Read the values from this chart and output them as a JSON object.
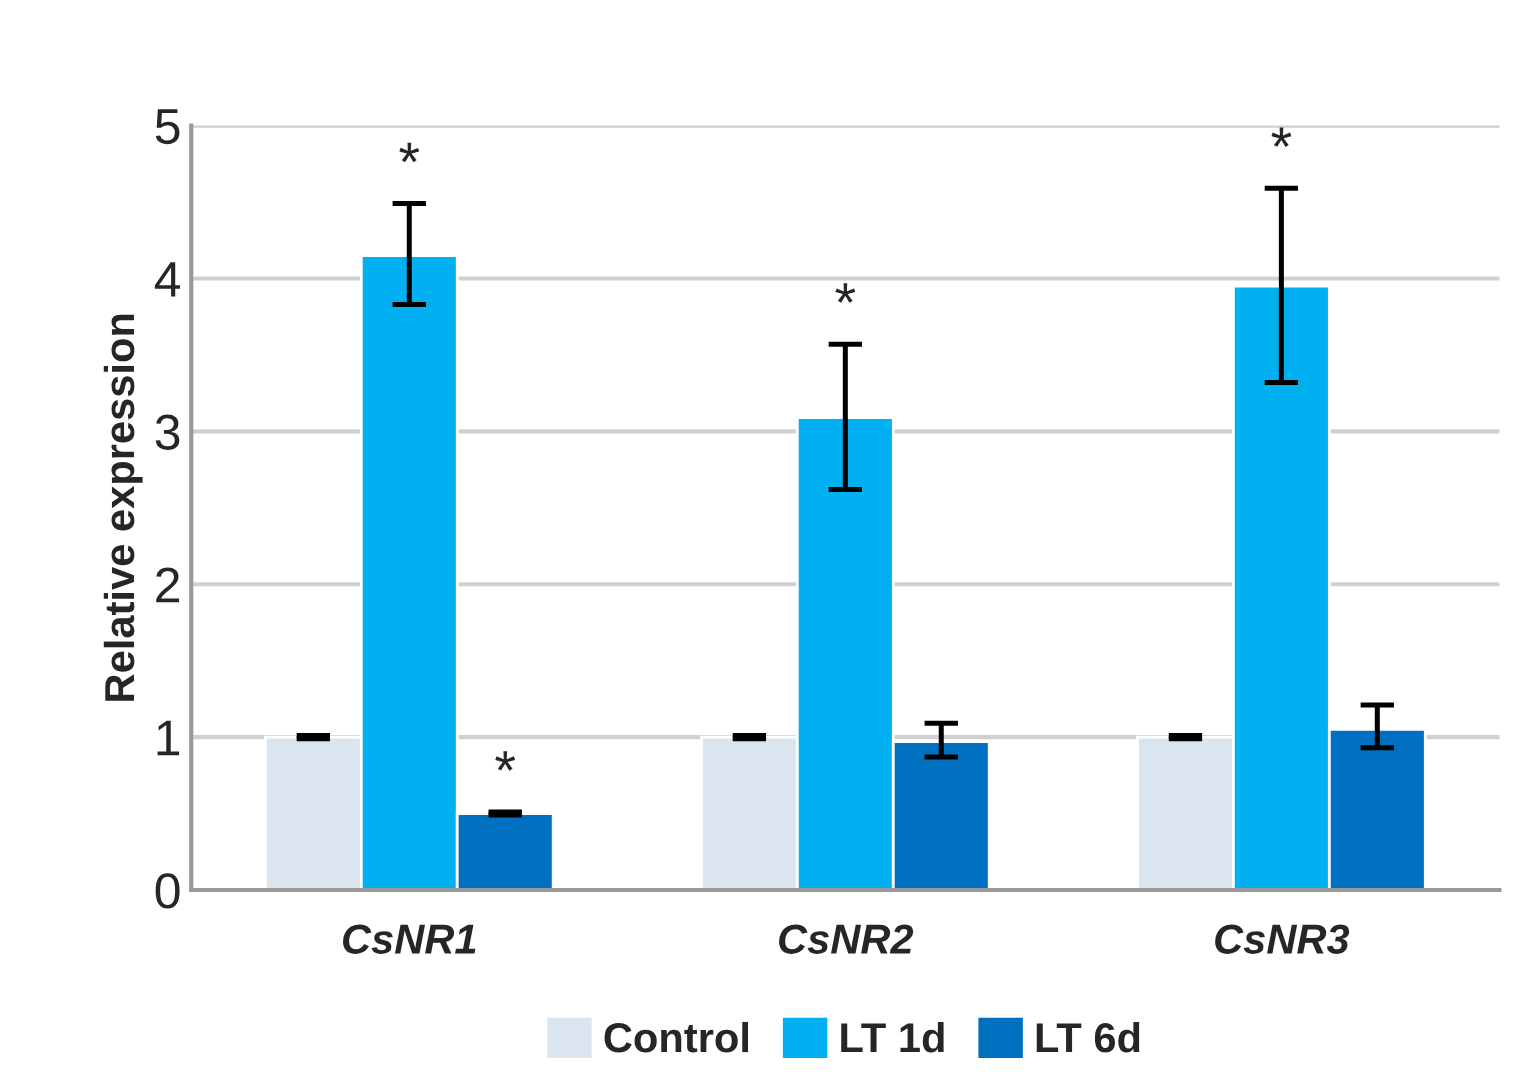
{
  "chart_data": {
    "type": "bar",
    "ylabel": "Relative expression",
    "categories": [
      "CsNR1",
      "CsNR2",
      "CsNR3"
    ],
    "series": [
      {
        "name": "Control",
        "color": "#dae5f0",
        "values": [
          1,
          1,
          1
        ],
        "errors": [
          0.01,
          0.01,
          0.01
        ]
      },
      {
        "name": "LT 1d",
        "color": "#00b0f0",
        "values": [
          4.15,
          3.09,
          3.95
        ],
        "errors": [
          [
            3.83,
            4.49
          ],
          [
            2.62,
            3.57
          ],
          [
            3.32,
            4.59
          ]
        ],
        "value_labels": [
          "*",
          "*",
          "*"
        ]
      },
      {
        "name": "LT 6d",
        "color": "#0070c0",
        "values": [
          0.5,
          0.97,
          1.05
        ],
        "errors": [
          0.01,
          [
            0.87,
            1.09
          ],
          [
            0.93,
            1.21
          ]
        ],
        "value_labels": [
          "*",
          null,
          null
        ]
      }
    ],
    "ylim": [
      0,
      5
    ],
    "yticks": [
      0,
      1,
      2,
      3,
      4,
      5
    ],
    "grid": "y",
    "legend": "bottom"
  }
}
